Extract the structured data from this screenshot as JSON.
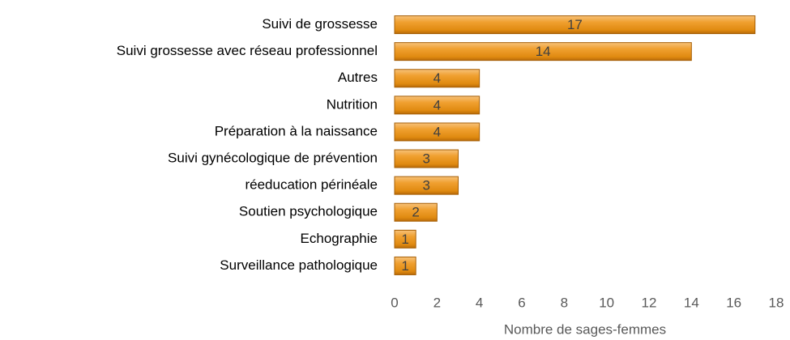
{
  "chart_data": {
    "type": "bar",
    "orientation": "horizontal",
    "categories": [
      "Suivi de grossesse",
      "Suivi grossesse avec réseau professionnel",
      "Autres",
      "Nutrition",
      "Préparation à la naissance",
      "Suivi gynécologique de prévention",
      "réeducation périnéale",
      "Soutien psychologique",
      "Echographie",
      "Surveillance pathologique"
    ],
    "values": [
      17,
      14,
      4,
      4,
      4,
      3,
      3,
      2,
      1,
      1
    ],
    "color": "#f0a030",
    "xlabel": "Nombre de sages-femmes",
    "xlim": [
      0,
      18
    ],
    "xticks": [
      0,
      2,
      4,
      6,
      8,
      10,
      12,
      14,
      16,
      18
    ],
    "grid": false
  }
}
